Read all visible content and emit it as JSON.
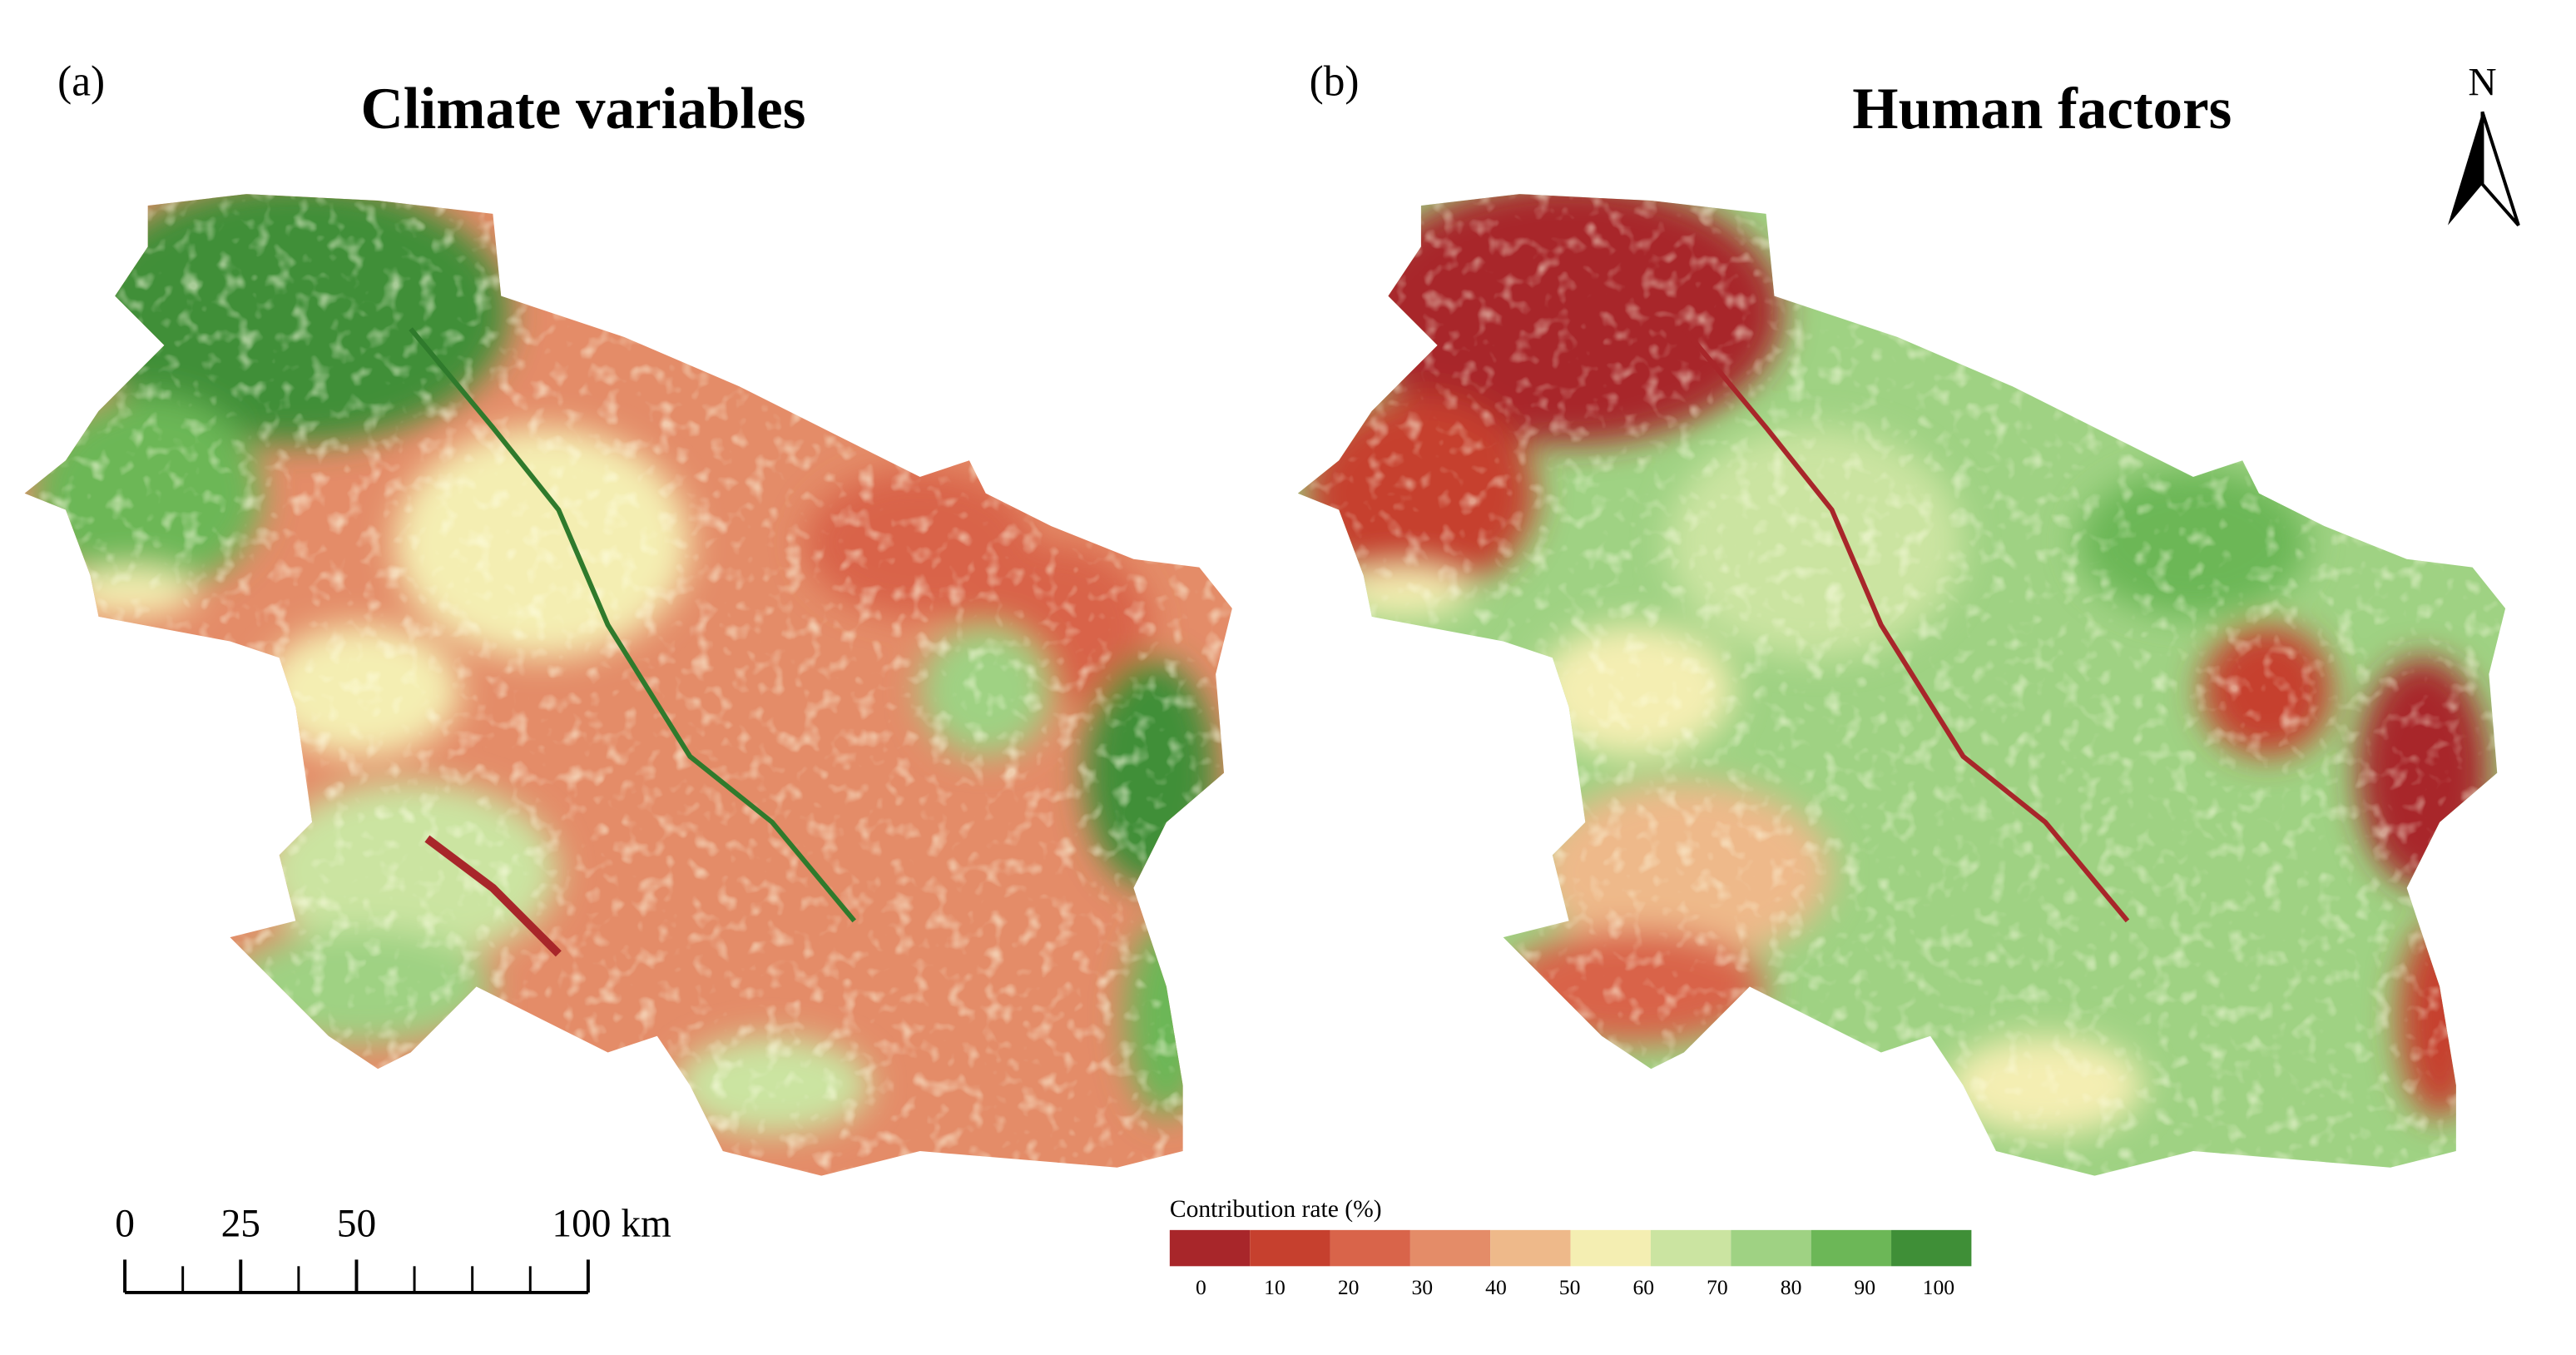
{
  "panels": [
    {
      "label": "(a)",
      "title": "Climate variables"
    },
    {
      "label": "(b)",
      "title": "Human factors"
    }
  ],
  "north_arrow": "N",
  "scale_bar": {
    "ticks": [
      {
        "value": 0,
        "label": "0"
      },
      {
        "value": 25,
        "label": "25"
      },
      {
        "value": 50,
        "label": "50"
      },
      {
        "value": 100,
        "label": "100 km"
      }
    ]
  },
  "legend": {
    "title": "Contribution rate (%)",
    "colors": [
      "#a8262a",
      "#c6402e",
      "#d9644a",
      "#e48c68",
      "#eeb98a",
      "#f4eeb2",
      "#cbe4a1",
      "#9fd283",
      "#6cb757",
      "#3f8f37"
    ],
    "labels": [
      "0",
      "10",
      "20",
      "30",
      "40",
      "50",
      "60",
      "70",
      "80",
      "90",
      "100"
    ]
  }
}
